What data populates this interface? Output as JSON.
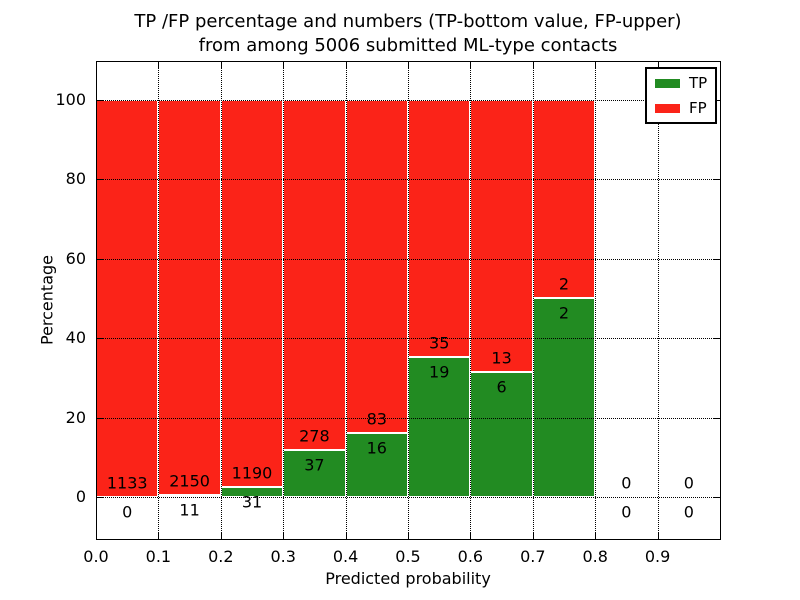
{
  "title_line1": "TP /FP percentage and numbers (TP-bottom value, FP-upper)",
  "title_line2": "from among 5006 submitted ML-type contacts",
  "chart_data": {
    "type": "bar",
    "subtype": "stacked-percentage-histogram",
    "title": "TP /FP percentage and numbers (TP-bottom value, FP-upper) from among 5006 submitted ML-type contacts",
    "xlabel": "Predicted probability",
    "ylabel": "Percentage",
    "total_contacts": 5006,
    "xlim": [
      0.0,
      1.0
    ],
    "ylim": [
      -10.6,
      109.8
    ],
    "xticks": [
      "0.0",
      "0.1",
      "0.2",
      "0.3",
      "0.4",
      "0.5",
      "0.6",
      "0.7",
      "0.8",
      "0.9"
    ],
    "yticks": [
      0,
      20,
      40,
      60,
      80,
      100
    ],
    "grid": "dotted, drawn above bars",
    "bin_edges": [
      0.0,
      0.1,
      0.2,
      0.3,
      0.4,
      0.5,
      0.6,
      0.7,
      0.8,
      0.9,
      1.0
    ],
    "series": [
      {
        "name": "TP",
        "color": "#228b22",
        "counts": [
          0,
          11,
          31,
          37,
          16,
          19,
          6,
          2,
          0,
          0
        ]
      },
      {
        "name": "FP",
        "color": "#fb2318",
        "counts": [
          1133,
          2150,
          1190,
          278,
          83,
          35,
          13,
          2,
          0,
          0
        ]
      }
    ],
    "tp_percent_by_bin": [
      0,
      0.51,
      2.54,
      11.75,
      16.16,
      35.19,
      31.58,
      50.0,
      0,
      0
    ],
    "legend": {
      "position": "upper-right",
      "entries": [
        {
          "label": "TP",
          "color": "#228b22"
        },
        {
          "label": "FP",
          "color": "#fb2318"
        }
      ]
    }
  }
}
